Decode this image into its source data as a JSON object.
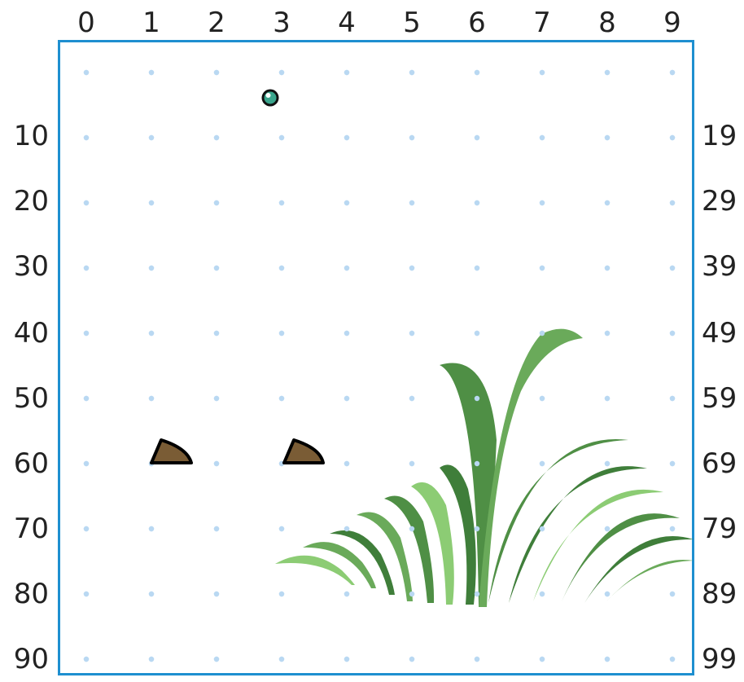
{
  "grid": {
    "columns": 10,
    "rows": 10,
    "column_labels": [
      "0",
      "1",
      "2",
      "3",
      "4",
      "5",
      "6",
      "7",
      "8",
      "9"
    ],
    "row_labels_left": [
      "10",
      "20",
      "30",
      "40",
      "50",
      "60",
      "70",
      "80",
      "90"
    ],
    "row_labels_right": [
      "19",
      "29",
      "39",
      "49",
      "59",
      "69",
      "79",
      "89",
      "99"
    ],
    "border_color": "#1e8fd0",
    "dot_color": "#b9d8f2"
  },
  "player": {
    "icon": "marble-icon",
    "col": 3,
    "row": 0.4,
    "color": "#3aa58c"
  },
  "rocks": [
    {
      "icon": "rock-icon",
      "col": 1,
      "row": 6,
      "color": "#7a5c35"
    },
    {
      "icon": "rock-icon",
      "col": 3,
      "row": 6,
      "color": "#7a5c35"
    }
  ],
  "grass": {
    "icon": "grass-icon",
    "colors": [
      "#4f8f45",
      "#6aaa5a",
      "#8ccc74",
      "#3f7e3a"
    ]
  }
}
